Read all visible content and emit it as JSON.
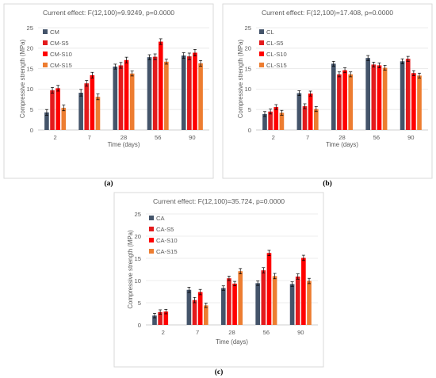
{
  "colors": {
    "s0": "#44546a",
    "s5": "#e31a1c",
    "s10": "#ff0000",
    "s15": "#ed7d31"
  },
  "chart_data": [
    {
      "type": "bar",
      "panel_letter": "(a)",
      "title": "Current effect: F(12,100)=9.9249, p=0.0000",
      "xlabel": "Time (days)",
      "ylabel": "Compressive strength (MPa)",
      "ylim": [
        0,
        25
      ],
      "yticks": [
        "0",
        "5",
        "10",
        "15",
        "20",
        "25"
      ],
      "categories": [
        "2",
        "7",
        "28",
        "56",
        "90"
      ],
      "legend_position": "top-left",
      "grid": true,
      "series": [
        {
          "name": "CM",
          "color": "#44546a",
          "values": [
            4.3,
            9.1,
            15.5,
            17.8,
            18.2
          ],
          "errors": [
            0.7,
            0.8,
            0.6,
            0.6,
            0.7
          ]
        },
        {
          "name": "CM-S5",
          "color": "#e31a1c",
          "values": [
            9.7,
            11.4,
            15.8,
            17.9,
            18.0
          ],
          "errors": [
            0.7,
            0.7,
            0.7,
            0.7,
            0.8
          ]
        },
        {
          "name": "CM-S10",
          "color": "#ff0000",
          "values": [
            10.2,
            13.4,
            17.1,
            21.6,
            18.9
          ],
          "errors": [
            0.7,
            0.7,
            0.7,
            0.7,
            0.8
          ]
        },
        {
          "name": "CM-S15",
          "color": "#ed7d31",
          "values": [
            5.4,
            8.1,
            13.8,
            16.7,
            16.3
          ],
          "errors": [
            0.7,
            0.7,
            0.6,
            0.6,
            0.7
          ]
        }
      ]
    },
    {
      "type": "bar",
      "panel_letter": "(b)",
      "title": "Current effect: F(12,100)=17.408, p=0.0000",
      "xlabel": "Time (days)",
      "ylabel": "Compressive strength (MPa)",
      "ylim": [
        0,
        25
      ],
      "yticks": [
        "0",
        "5",
        "10",
        "15",
        "20",
        "25"
      ],
      "categories": [
        "2",
        "7",
        "28",
        "56",
        "90"
      ],
      "legend_position": "top-left",
      "grid": true,
      "series": [
        {
          "name": "CL",
          "color": "#44546a",
          "values": [
            3.9,
            9.0,
            16.2,
            17.6,
            16.8
          ],
          "errors": [
            0.6,
            0.6,
            0.6,
            0.6,
            0.6
          ]
        },
        {
          "name": "CL-S5",
          "color": "#e31a1c",
          "values": [
            4.5,
            5.8,
            13.6,
            16.0,
            17.4
          ],
          "errors": [
            0.6,
            0.6,
            0.6,
            0.6,
            0.6
          ]
        },
        {
          "name": "CL-S10",
          "color": "#ff0000",
          "values": [
            5.6,
            8.9,
            14.6,
            15.8,
            13.9
          ],
          "errors": [
            0.6,
            0.6,
            0.6,
            0.6,
            0.6
          ]
        },
        {
          "name": "CL-S15",
          "color": "#ed7d31",
          "values": [
            4.2,
            5.1,
            13.6,
            15.2,
            13.3
          ],
          "errors": [
            0.6,
            0.6,
            0.6,
            0.6,
            0.6
          ]
        }
      ]
    },
    {
      "type": "bar",
      "panel_letter": "(c)",
      "title": "Current effect: F(12,100)=35.724, p=0.0000",
      "xlabel": "Time (days)",
      "ylabel": "Compressive strength (MPa)",
      "ylim": [
        0,
        25
      ],
      "yticks": [
        "0",
        "5",
        "10",
        "15",
        "20",
        "25"
      ],
      "categories": [
        "2",
        "7",
        "28",
        "56",
        "90"
      ],
      "legend_position": "top-left",
      "grid": true,
      "series": [
        {
          "name": "CA",
          "color": "#44546a",
          "values": [
            2.1,
            7.9,
            8.3,
            9.4,
            9.2
          ],
          "errors": [
            0.5,
            0.6,
            0.5,
            0.5,
            0.5
          ]
        },
        {
          "name": "CA-S5",
          "color": "#e31a1c",
          "values": [
            2.9,
            5.6,
            10.5,
            12.3,
            10.9
          ],
          "errors": [
            0.5,
            0.6,
            0.5,
            0.6,
            0.6
          ]
        },
        {
          "name": "CA-S10",
          "color": "#ff0000",
          "values": [
            3.0,
            7.4,
            9.3,
            16.2,
            15.1
          ],
          "errors": [
            0.5,
            0.6,
            0.5,
            0.6,
            0.6
          ]
        },
        {
          "name": "CA-S15",
          "color": "#ed7d31",
          "values": [
            0.0,
            4.4,
            12.1,
            11.0,
            9.9
          ],
          "errors": [
            0.0,
            0.5,
            0.6,
            0.6,
            0.6
          ]
        }
      ]
    }
  ]
}
